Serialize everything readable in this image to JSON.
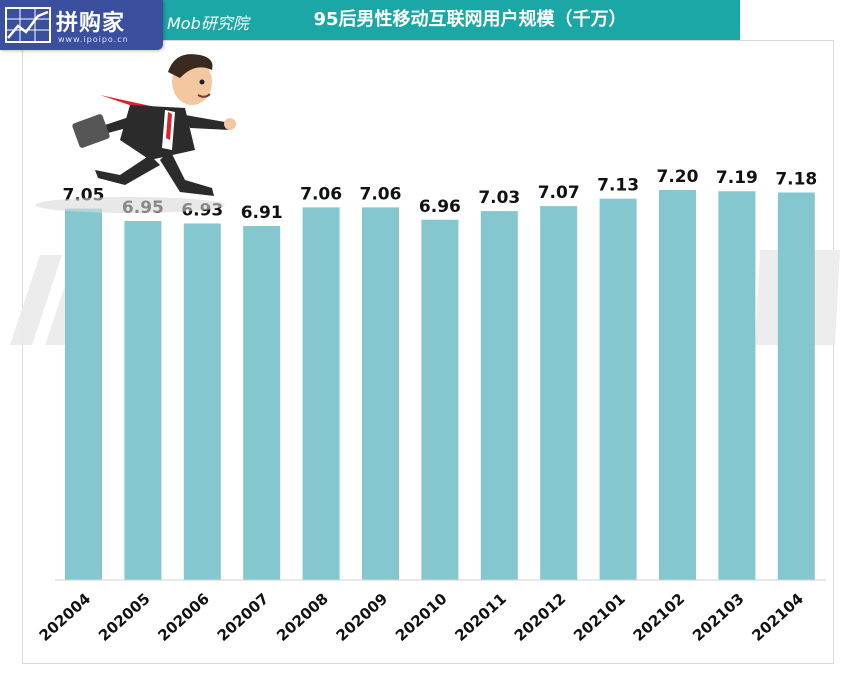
{
  "header": {
    "logo_text": "拼购家",
    "logo_url": "www.ipoipo.cn",
    "brand": "Mob研究院"
  },
  "colors": {
    "header": "#1aa7a5",
    "logo_bg": "#3a4f9e",
    "bar": "#84c7ce"
  },
  "chart_data": {
    "type": "bar",
    "title": "95后男性移动互联网用户规模（千万）",
    "categories": [
      "202004",
      "202005",
      "202006",
      "202007",
      "202008",
      "202009",
      "202010",
      "202011",
      "202012",
      "202101",
      "202102",
      "202103",
      "202104"
    ],
    "values": [
      7.05,
      6.95,
      6.93,
      6.91,
      7.06,
      7.06,
      6.96,
      7.03,
      7.07,
      7.13,
      7.2,
      7.19,
      7.18
    ],
    "value_labels": [
      "7.05",
      "6.95",
      "6.93",
      "6.91",
      "7.06",
      "7.06",
      "6.96",
      "7.03",
      "7.07",
      "7.13",
      "7.20",
      "7.19",
      "7.18"
    ],
    "xlabel": "",
    "ylabel": "",
    "grid": false,
    "y_axis_visible": false
  }
}
